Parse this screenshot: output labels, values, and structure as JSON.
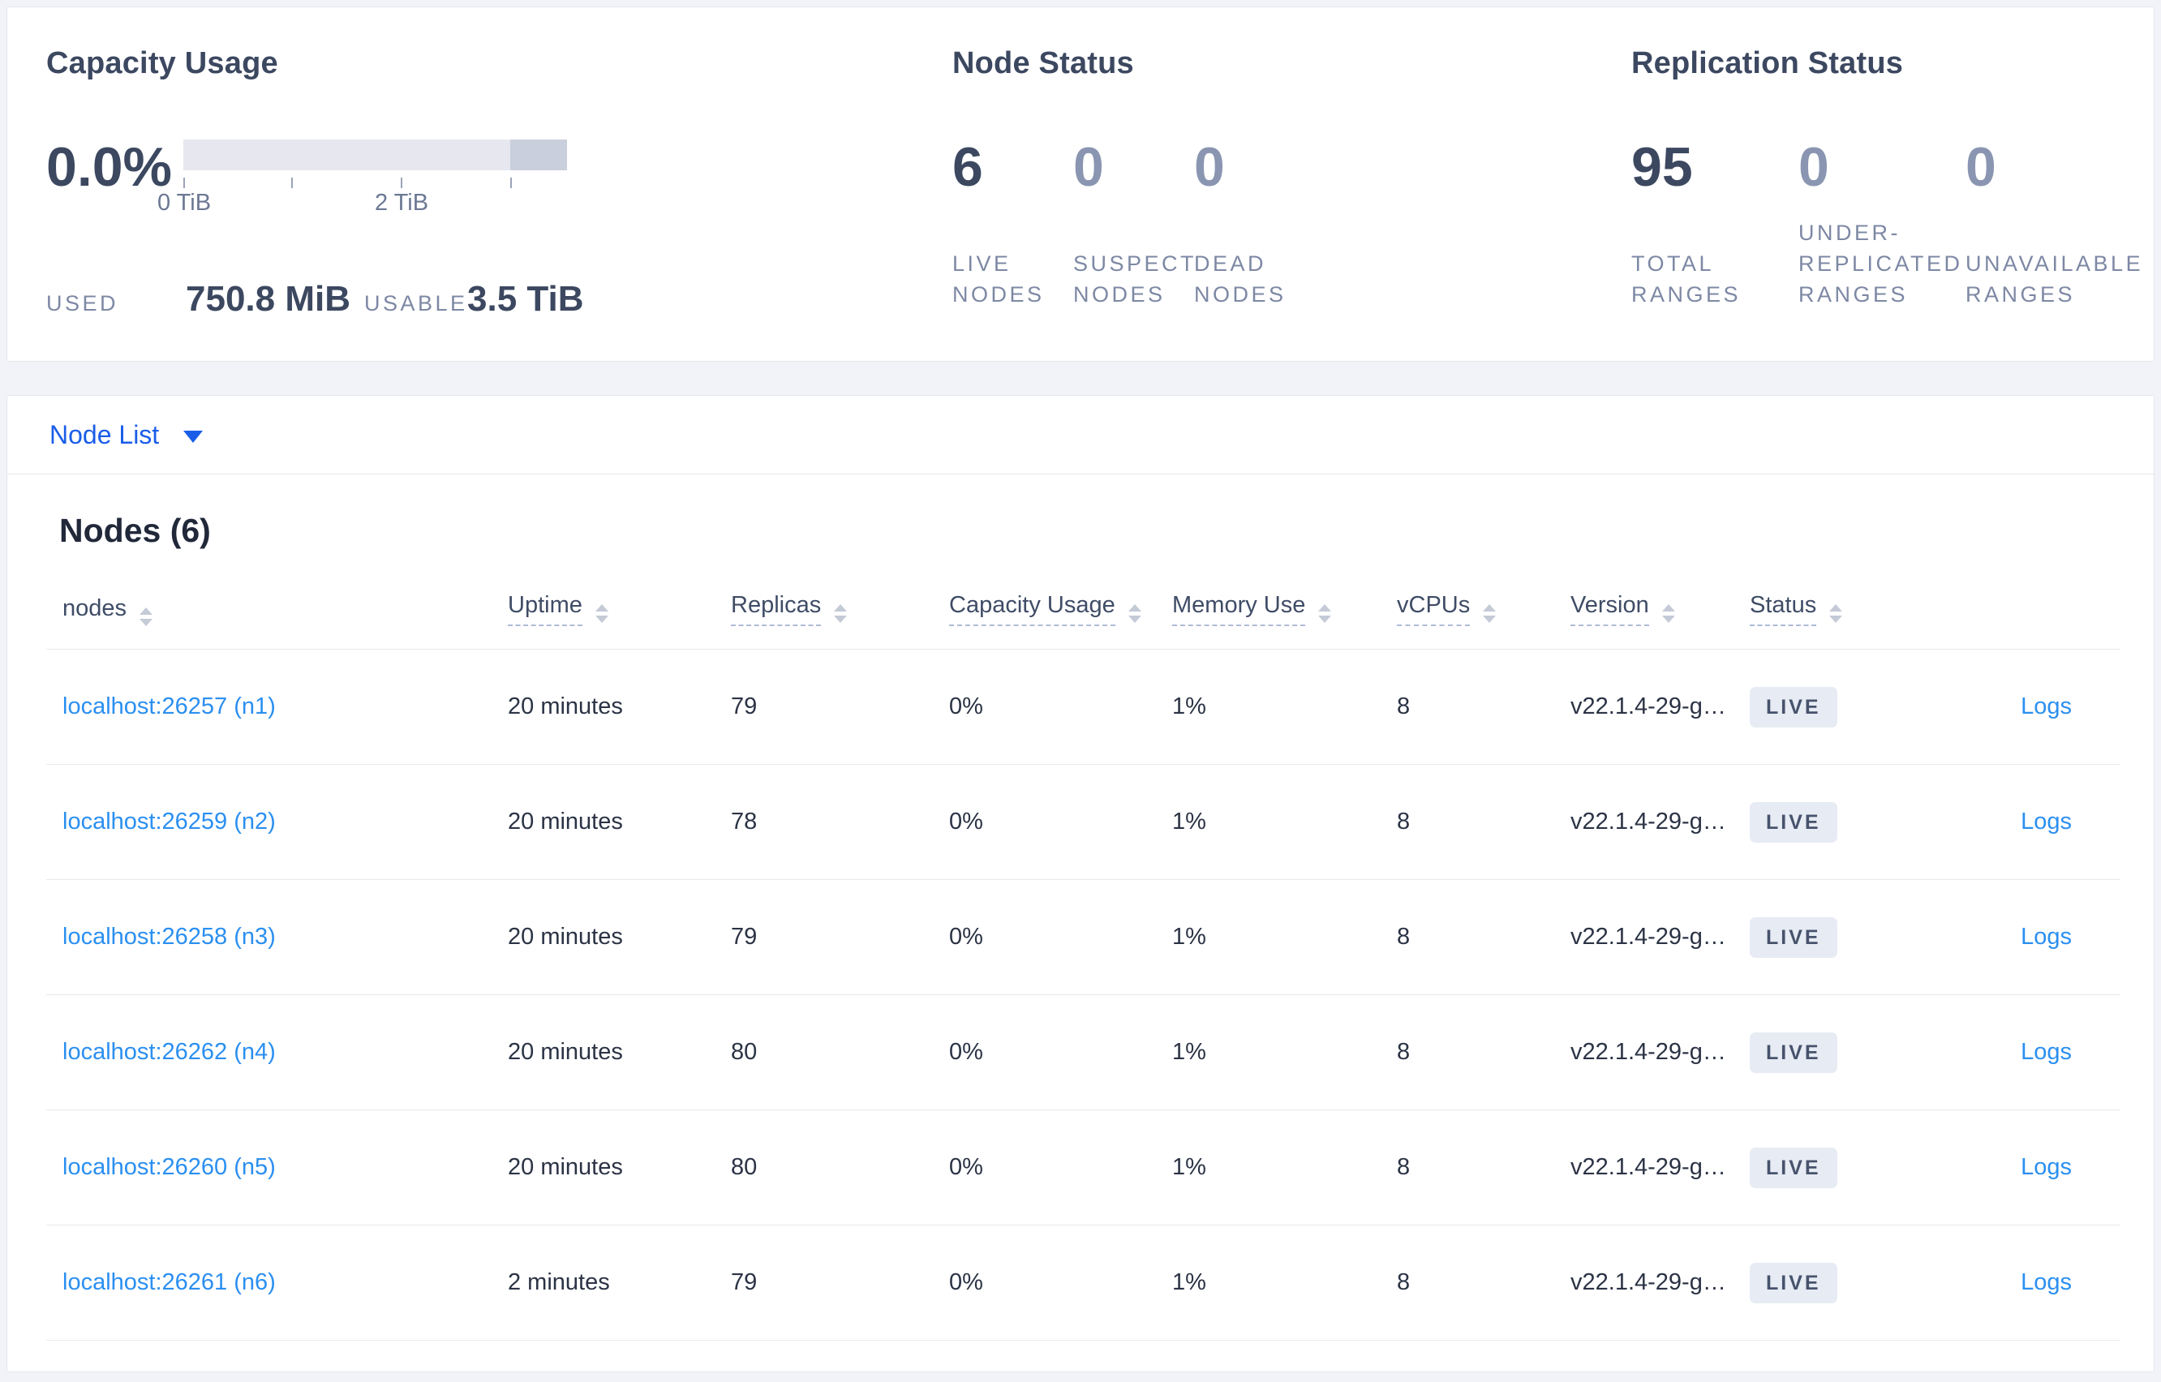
{
  "summary": {
    "capacity": {
      "title": "Capacity Usage",
      "percent": "0.0%",
      "bar": {
        "total_ticks": [
          "0 TiB",
          "1 TiB",
          "2 TiB",
          "3 TiB"
        ],
        "shown_tick_labels": [
          "0 TiB",
          "2 TiB"
        ]
      },
      "used_label": "USED",
      "used_value": "750.8 MiB",
      "usable_label": "USABLE",
      "usable_value": "3.5 TiB"
    },
    "node_status": {
      "title": "Node Status",
      "stats": [
        {
          "value": "6",
          "label": "LIVE NODES"
        },
        {
          "value": "0",
          "label": "SUSPECT NODES"
        },
        {
          "value": "0",
          "label": "DEAD NODES"
        }
      ]
    },
    "replication": {
      "title": "Replication Status",
      "stats": [
        {
          "value": "95",
          "label": "TOTAL RANGES"
        },
        {
          "value": "0",
          "label": "UNDER-REPLICATED RANGES"
        },
        {
          "value": "0",
          "label": "UNAVAILABLE RANGES"
        }
      ]
    }
  },
  "node_list": {
    "dropdown_label": "Node List"
  },
  "nodes_section": {
    "heading": "Nodes (6)",
    "columns": [
      {
        "label": "nodes",
        "sortable": true,
        "underline": false
      },
      {
        "label": "Uptime",
        "sortable": true,
        "underline": true
      },
      {
        "label": "Replicas",
        "sortable": true,
        "underline": true
      },
      {
        "label": "Capacity Usage",
        "sortable": true,
        "underline": true
      },
      {
        "label": "Memory Use",
        "sortable": true,
        "underline": true
      },
      {
        "label": "vCPUs",
        "sortable": true,
        "underline": true
      },
      {
        "label": "Version",
        "sortable": true,
        "underline": true
      },
      {
        "label": "Status",
        "sortable": true,
        "underline": true
      },
      {
        "label": "",
        "sortable": false,
        "underline": false
      }
    ],
    "rows": [
      {
        "host": "localhost:26257 (n1)",
        "uptime": "20 minutes",
        "replicas": "79",
        "capacity": "0%",
        "memory": "1%",
        "vcpus": "8",
        "version": "v22.1.4-29-g…",
        "status": "LIVE",
        "logs": "Logs"
      },
      {
        "host": "localhost:26259 (n2)",
        "uptime": "20 minutes",
        "replicas": "78",
        "capacity": "0%",
        "memory": "1%",
        "vcpus": "8",
        "version": "v22.1.4-29-g…",
        "status": "LIVE",
        "logs": "Logs"
      },
      {
        "host": "localhost:26258 (n3)",
        "uptime": "20 minutes",
        "replicas": "79",
        "capacity": "0%",
        "memory": "1%",
        "vcpus": "8",
        "version": "v22.1.4-29-g…",
        "status": "LIVE",
        "logs": "Logs"
      },
      {
        "host": "localhost:26262 (n4)",
        "uptime": "20 minutes",
        "replicas": "80",
        "capacity": "0%",
        "memory": "1%",
        "vcpus": "8",
        "version": "v22.1.4-29-g…",
        "status": "LIVE",
        "logs": "Logs"
      },
      {
        "host": "localhost:26260 (n5)",
        "uptime": "20 minutes",
        "replicas": "80",
        "capacity": "0%",
        "memory": "1%",
        "vcpus": "8",
        "version": "v22.1.4-29-g…",
        "status": "LIVE",
        "logs": "Logs"
      },
      {
        "host": "localhost:26261 (n6)",
        "uptime": "2 minutes",
        "replicas": "79",
        "capacity": "0%",
        "memory": "1%",
        "vcpus": "8",
        "version": "v22.1.4-29-g…",
        "status": "LIVE",
        "logs": "Logs"
      }
    ]
  },
  "colors": {
    "accent_link": "#2b8ff0",
    "dropdown_link": "#1a5de8",
    "stat_strong": "#3c4860",
    "stat_muted": "#8a95b1",
    "badge_bg": "#e7ebf3",
    "badge_text": "#47536d",
    "bar_light": "#e7e8ef",
    "bar_dark": "#c9cfdc",
    "page_bg": "#f2f3f8"
  }
}
